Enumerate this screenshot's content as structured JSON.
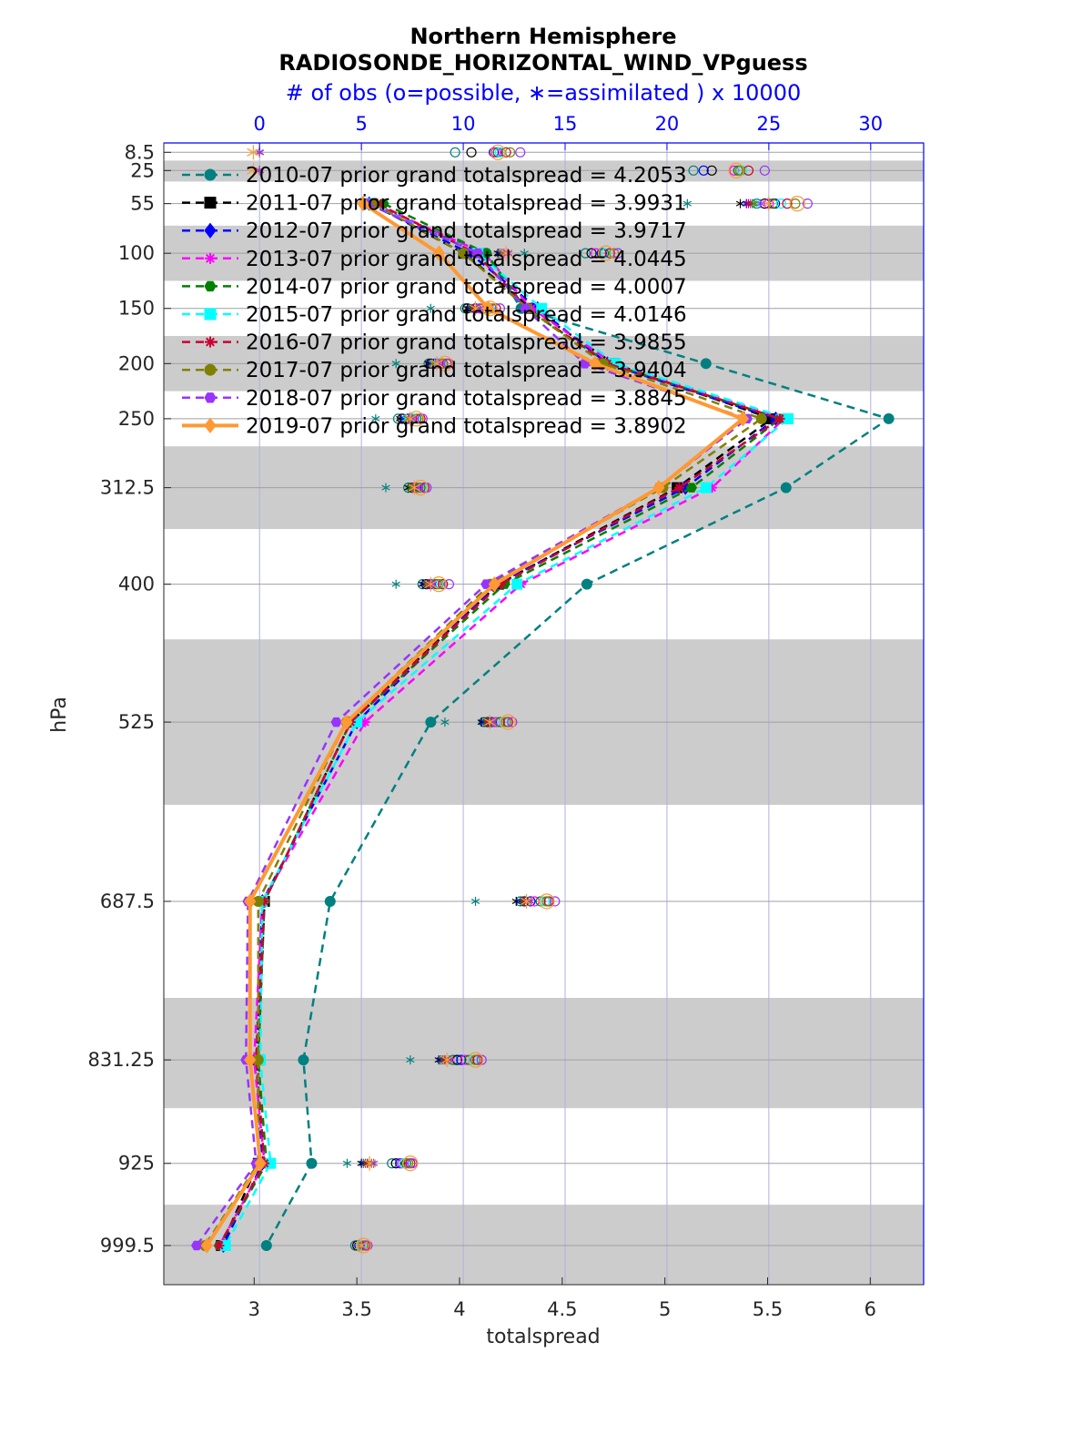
{
  "chart_data": {
    "type": "line",
    "title": "Northern Hemisphere",
    "subtitle": "RADIOSONDE_HORIZONTAL_WIND_VPguess",
    "top_axis_label": "# of obs (o=possible, ∗=assimilated ) x 10000",
    "xlabel": "totalspread",
    "ylabel": "hPa",
    "xlim": [
      2.56,
      6.26
    ],
    "x_ticks": [
      "3",
      "3.5",
      "4",
      "4.5",
      "5",
      "5.5",
      "6"
    ],
    "top_xlim": [
      -4.7,
      32.6
    ],
    "top_ticks": [
      "0",
      "5",
      "10",
      "15",
      "20",
      "25",
      "30"
    ],
    "y_levels": [
      8.5,
      25,
      55,
      100,
      150,
      200,
      250,
      312.5,
      400,
      525,
      687.5,
      831.25,
      925,
      999.5
    ],
    "y_tick_labels": [
      "8.5",
      "25",
      "55",
      "100",
      "150",
      "200",
      "250",
      "312.5",
      "400",
      "525",
      "687.5",
      "831.25",
      "925",
      "999.5"
    ],
    "shaded_bands": [
      [
        16,
        35
      ],
      [
        75,
        125
      ],
      [
        175,
        225
      ],
      [
        275,
        350
      ],
      [
        450,
        600
      ],
      [
        775,
        875
      ],
      [
        962.5,
        1035
      ]
    ],
    "grid": true,
    "legend_position": "top-left",
    "series": [
      {
        "name": "2010-07 prior grand totalspread = 4.2053",
        "color": "#008080",
        "marker": "circle",
        "dash": "dash",
        "x": [
          3.56,
          4.13,
          4.3,
          5.2,
          6.09,
          5.59,
          4.62,
          3.86,
          3.37,
          3.24,
          3.28,
          3.06
        ]
      },
      {
        "name": "2011-07 prior grand totalspread = 3.9931",
        "color": "#000000",
        "marker": "square",
        "dash": "dash",
        "x": [
          3.57,
          4.02,
          4.35,
          4.75,
          5.52,
          5.06,
          4.19,
          3.47,
          3.05,
          3.02,
          3.02,
          2.84
        ]
      },
      {
        "name": "2012-07 prior grand totalspread = 3.9717",
        "color": "#0000ff",
        "marker": "diamond",
        "dash": "dash",
        "x": [
          3.56,
          4.05,
          4.38,
          4.72,
          5.54,
          5.1,
          4.18,
          3.5,
          3.04,
          3.01,
          3.04,
          2.85
        ]
      },
      {
        "name": "2013-07 prior grand totalspread = 4.0445",
        "color": "#ff00ff",
        "marker": "star",
        "dash": "dash",
        "x": [
          3.58,
          4.12,
          4.35,
          4.75,
          5.58,
          5.23,
          4.3,
          3.54,
          3.04,
          3.0,
          3.05,
          2.83
        ]
      },
      {
        "name": "2014-07 prior grand totalspread = 4.0007",
        "color": "#008000",
        "marker": "hexagon",
        "dash": "dash",
        "x": [
          3.63,
          4.13,
          4.32,
          4.73,
          5.56,
          5.13,
          4.22,
          3.47,
          3.05,
          3.02,
          3.06,
          2.83
        ]
      },
      {
        "name": "2015-07 prior grand totalspread = 4.0146",
        "color": "#00ffff",
        "marker": "square",
        "dash": "dash",
        "x": [
          3.56,
          4.09,
          4.4,
          4.76,
          5.6,
          5.2,
          4.28,
          3.5,
          3.04,
          3.03,
          3.08,
          2.86
        ]
      },
      {
        "name": "2016-07 prior grand totalspread = 3.9855",
        "color": "#cc0033",
        "marker": "star",
        "dash": "dash",
        "x": [
          3.6,
          4.08,
          4.33,
          4.72,
          5.56,
          5.07,
          4.2,
          3.47,
          3.05,
          3.01,
          3.05,
          2.83
        ]
      },
      {
        "name": "2017-07 prior grand totalspread = 3.9404",
        "color": "#808000",
        "marker": "circle",
        "dash": "dash",
        "x": [
          3.58,
          4.02,
          4.33,
          4.7,
          5.47,
          4.99,
          4.15,
          3.45,
          3.02,
          3.02,
          3.02,
          2.76
        ]
      },
      {
        "name": "2018-07 prior grand totalspread = 3.8845",
        "color": "#9933ff",
        "marker": "hexagon",
        "dash": "dash",
        "x": [
          3.55,
          4.09,
          4.32,
          4.61,
          5.4,
          4.97,
          4.13,
          3.4,
          2.97,
          2.96,
          3.01,
          2.72
        ]
      },
      {
        "name": "2019-07 prior grand totalspread = 3.8902",
        "color": "#ff9933",
        "marker": "diamond",
        "dash": "solid",
        "x": [
          3.53,
          3.9,
          4.14,
          4.66,
          5.38,
          4.97,
          4.17,
          3.45,
          2.98,
          2.98,
          3.03,
          2.77
        ]
      }
    ],
    "obs_possible": [
      {
        "level": 8.5,
        "values": [
          9.6,
          10.4,
          11.5,
          11.6,
          11.7,
          11.8,
          12.1,
          12.3,
          12.8,
          11.7
        ]
      },
      {
        "level": 25,
        "values": [
          21.3,
          22.2,
          21.8,
          23.3,
          23.5,
          23.7,
          24.0,
          23.6,
          24.8,
          23.4
        ]
      },
      {
        "level": 55,
        "values": [
          24.4,
          24.8,
          25.3,
          25.0,
          25.2,
          25.6,
          25.9,
          26.3,
          26.9,
          26.4
        ]
      },
      {
        "level": 100,
        "values": [
          16.0,
          16.3,
          16.8,
          16.5,
          16.9,
          17.0,
          17.2,
          17.4,
          17.6,
          17.0
        ]
      },
      {
        "level": 150,
        "values": [
          10.1,
          10.2,
          10.6,
          10.8,
          11.0,
          11.3,
          11.6,
          11.4,
          11.8,
          11.3
        ]
      },
      {
        "level": 200,
        "values": [
          8.3,
          8.4,
          8.6,
          8.8,
          9.0,
          8.9,
          9.2,
          9.0,
          9.3,
          9.1
        ]
      },
      {
        "level": 250,
        "values": [
          6.8,
          7.0,
          7.3,
          7.5,
          7.7,
          7.6,
          7.9,
          7.8,
          8.0,
          7.7
        ]
      },
      {
        "level": 312.5,
        "values": [
          7.3,
          7.5,
          7.7,
          7.6,
          7.9,
          8.0,
          8.1,
          7.8,
          8.2,
          7.9
        ]
      },
      {
        "level": 400,
        "values": [
          8.0,
          8.2,
          8.4,
          8.6,
          8.7,
          8.9,
          9.0,
          8.8,
          9.3,
          8.8
        ]
      },
      {
        "level": 525,
        "values": [
          11.0,
          11.2,
          11.4,
          11.6,
          11.8,
          12.0,
          12.2,
          12.1,
          12.4,
          12.2
        ]
      },
      {
        "level": 687.5,
        "values": [
          12.8,
          13.0,
          13.3,
          13.5,
          13.8,
          14.0,
          14.2,
          14.1,
          14.5,
          14.1
        ]
      },
      {
        "level": 831.25,
        "values": [
          9.5,
          9.7,
          9.9,
          10.1,
          10.3,
          10.5,
          10.7,
          10.6,
          10.9,
          10.6
        ]
      },
      {
        "level": 925,
        "values": [
          6.5,
          6.7,
          6.9,
          7.0,
          7.2,
          7.1,
          7.4,
          7.3,
          7.5,
          7.4
        ]
      },
      {
        "level": 999.5,
        "values": [
          4.7,
          4.8,
          4.9,
          5.0,
          5.1,
          5.0,
          5.2,
          5.1,
          5.3,
          5.1
        ]
      }
    ],
    "obs_assimilated": [
      {
        "level": 8.5,
        "values": [
          0,
          0,
          0,
          0,
          0,
          0,
          0,
          0,
          0,
          -0.3
        ]
      },
      {
        "level": 25,
        "values": [
          0,
          0,
          0,
          0,
          0,
          0,
          0,
          0,
          0,
          -0.3
        ]
      },
      {
        "level": 55,
        "values": [
          21.0,
          23.6,
          23.9,
          24.1,
          24.2,
          24.4,
          24.0,
          24.3,
          24.6,
          25.0
        ]
      },
      {
        "level": 100,
        "values": [
          13.0,
          11.7,
          11.8,
          12.0,
          11.9,
          12.1,
          12.2,
          11.9,
          12.2,
          12.1
        ]
      },
      {
        "level": 150,
        "values": [
          8.4,
          10.2,
          10.3,
          10.5,
          10.4,
          10.6,
          10.5,
          10.7,
          10.8,
          10.6
        ]
      },
      {
        "level": 200,
        "values": [
          6.7,
          8.3,
          8.4,
          8.6,
          8.5,
          8.6,
          8.7,
          8.5,
          8.8,
          8.7
        ]
      },
      {
        "level": 250,
        "values": [
          5.7,
          6.9,
          7.1,
          7.2,
          7.3,
          7.2,
          7.4,
          7.3,
          7.5,
          7.4
        ]
      },
      {
        "level": 312.5,
        "values": [
          6.2,
          7.3,
          7.4,
          7.5,
          7.4,
          7.6,
          7.6,
          7.5,
          7.8,
          7.6
        ]
      },
      {
        "level": 400,
        "values": [
          6.7,
          8.0,
          8.1,
          8.3,
          8.2,
          8.4,
          8.3,
          8.2,
          8.5,
          8.4
        ]
      },
      {
        "level": 525,
        "values": [
          9.1,
          10.9,
          11.0,
          11.2,
          11.1,
          11.3,
          11.2,
          11.4,
          11.5,
          11.3
        ]
      },
      {
        "level": 687.5,
        "values": [
          10.6,
          12.6,
          12.8,
          13.0,
          12.9,
          13.1,
          13.0,
          13.2,
          13.3,
          13.1
        ]
      },
      {
        "level": 831.25,
        "values": [
          7.4,
          8.8,
          8.9,
          9.1,
          9.0,
          9.2,
          9.1,
          9.3,
          9.4,
          9.2
        ]
      },
      {
        "level": 925,
        "values": [
          4.3,
          5.0,
          5.1,
          5.3,
          5.2,
          5.4,
          5.3,
          5.5,
          5.6,
          5.4
        ]
      },
      {
        "level": 999.5,
        "values": [
          5.0,
          5.0,
          5.0,
          5.0,
          5.0,
          5.0,
          5.0,
          5.0,
          5.0,
          5.0
        ]
      }
    ]
  }
}
